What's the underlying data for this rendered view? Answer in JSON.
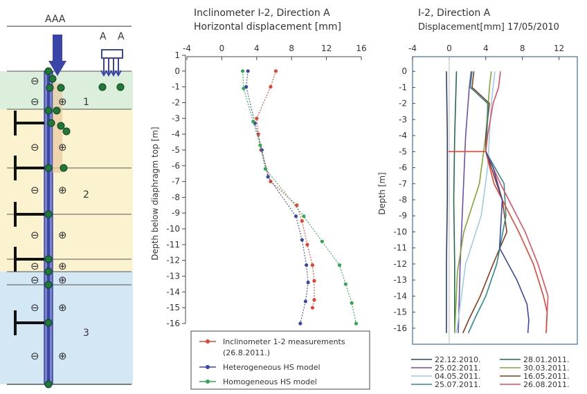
{
  "figure": {
    "schematic": {
      "top_label": "AAA",
      "arrow_label_1": "A",
      "arrow_label_2": "A",
      "layers": [
        {
          "label": "1",
          "color": "#dcefdc"
        },
        {
          "label": "2",
          "color": "#fbf2d0"
        },
        {
          "label": "3",
          "color": "#d4e7f5"
        }
      ],
      "minus_sign": "⊖",
      "plus_sign": "⊕",
      "wall_color": "#3a45a8",
      "anchor_color": "#111111",
      "node_color": "#1f7a3a"
    }
  },
  "chart_data": [
    {
      "type": "line",
      "title": "Inclinometer I-2, Direction A",
      "subtitle": "Horizontal displacement [mm]",
      "xlabel": "",
      "ylabel": "Depth below diaphragm top [m]",
      "xlim": [
        -4,
        16
      ],
      "ylim": [
        -16,
        1
      ],
      "xticks": [
        -4,
        0,
        4,
        8,
        12,
        16
      ],
      "yticks": [
        1,
        0,
        -1,
        -2,
        -3,
        -4,
        -5,
        -6,
        -7,
        -8,
        -9,
        -10,
        -11,
        -12,
        -13,
        -14,
        -15,
        -16
      ],
      "ytick_labels": [
        "1",
        "0",
        "-1",
        "-2",
        "-3",
        "-4",
        "-5",
        "-6",
        "-7",
        "-8",
        "-9",
        "-10",
        "-11",
        "-12",
        "-13",
        "-14",
        "-15",
        "-16"
      ],
      "legend_position": "bottom",
      "series": [
        {
          "name": "Inclinometer 1-2 measurements (26.8.2011.)",
          "color": "#e8432e",
          "points": [
            [
              6.2,
              0
            ],
            [
              5.6,
              -1
            ],
            [
              4.0,
              -3
            ],
            [
              4.2,
              -4
            ],
            [
              4.5,
              -5
            ],
            [
              5.6,
              -7
            ],
            [
              8.6,
              -8.5
            ],
            [
              9.2,
              -9.5
            ],
            [
              9.8,
              -11
            ],
            [
              10.4,
              -12.3
            ],
            [
              10.6,
              -13.3
            ],
            [
              10.6,
              -14.5
            ],
            [
              10.4,
              -15
            ]
          ]
        },
        {
          "name": "Heterogeneous HS model",
          "color": "#3b47a8",
          "points": [
            [
              3.0,
              0
            ],
            [
              2.8,
              -1
            ],
            [
              3.8,
              -3.3
            ],
            [
              4.6,
              -5
            ],
            [
              5.3,
              -6.7
            ],
            [
              8.5,
              -9.2
            ],
            [
              9.2,
              -10.7
            ],
            [
              9.7,
              -12.3
            ],
            [
              9.9,
              -13.4
            ],
            [
              9.6,
              -14.6
            ],
            [
              9.0,
              -16
            ]
          ]
        },
        {
          "name": "Homogeneous HS model",
          "color": "#2eaa52",
          "points": [
            [
              2.4,
              0
            ],
            [
              2.5,
              -1.1
            ],
            [
              3.6,
              -3.2
            ],
            [
              4.4,
              -4.7
            ],
            [
              5.0,
              -6.2
            ],
            [
              9.4,
              -9.2
            ],
            [
              11.5,
              -10.8
            ],
            [
              13.5,
              -12.3
            ],
            [
              14.2,
              -13.5
            ],
            [
              14.9,
              -14.7
            ],
            [
              15.4,
              -16
            ]
          ]
        }
      ]
    },
    {
      "type": "line",
      "title": "I-2, Direction A",
      "subtitle": "Displacement[mm] 17/05/2010",
      "xlabel": "",
      "ylabel": "Depth [m]",
      "xlim": [
        -4,
        14
      ],
      "ylim": [
        -17,
        1
      ],
      "xticks": [
        -4,
        0,
        4,
        8,
        12
      ],
      "yticks": [
        0,
        -1,
        -2,
        -3,
        -4,
        -5,
        -6,
        -7,
        -8,
        -9,
        -10,
        -11,
        -12,
        -13,
        -14,
        -15,
        -16
      ],
      "legend_position": "bottom",
      "series": [
        {
          "name": "22.12.2010.",
          "color": "#2c3e7a",
          "points": [
            [
              -0.3,
              0
            ],
            [
              -0.2,
              -4
            ],
            [
              -0.2,
              -8
            ],
            [
              -0.3,
              -12
            ],
            [
              -0.3,
              -16.3
            ]
          ]
        },
        {
          "name": "28.01.2011.",
          "color": "#1f6b4a",
          "points": [
            [
              0.8,
              0
            ],
            [
              0.6,
              -4
            ],
            [
              0.5,
              -8
            ],
            [
              0.6,
              -12
            ],
            [
              0.6,
              -16.3
            ]
          ]
        },
        {
          "name": "25.02.2011.",
          "color": "#6a4fb0",
          "points": [
            [
              2.4,
              0
            ],
            [
              2.2,
              -1
            ],
            [
              1.8,
              -4
            ],
            [
              1.5,
              -8
            ],
            [
              1.2,
              -12
            ],
            [
              1.0,
              -16.3
            ]
          ]
        },
        {
          "name": "30.03.2011.",
          "color": "#7fa832",
          "points": [
            [
              4.6,
              0
            ],
            [
              4.4,
              -1
            ],
            [
              4.0,
              -4
            ],
            [
              3.3,
              -7
            ],
            [
              1.6,
              -10
            ],
            [
              0.9,
              -12.5
            ],
            [
              0.6,
              -16.3
            ]
          ]
        },
        {
          "name": "04.05.2011.",
          "color": "#9ecbe8",
          "points": [
            [
              5.0,
              0
            ],
            [
              4.8,
              -1
            ],
            [
              4.6,
              -2
            ],
            [
              4.4,
              -4
            ],
            [
              4.2,
              -6
            ],
            [
              3.5,
              -9
            ],
            [
              1.8,
              -12
            ],
            [
              0.8,
              -16.3
            ]
          ]
        },
        {
          "name": "16.05.2011.",
          "color": "#8b3a1a",
          "points": [
            [
              2.7,
              0
            ],
            [
              2.5,
              -1
            ],
            [
              2.9,
              -1.2
            ],
            [
              4.4,
              -2
            ],
            [
              4.0,
              -4
            ],
            [
              4.0,
              -5
            ],
            [
              5.8,
              -8
            ],
            [
              6.3,
              -10
            ],
            [
              4.8,
              -12
            ],
            [
              3.4,
              -14
            ],
            [
              2.2,
              -15.4
            ],
            [
              1.5,
              -16.3
            ]
          ]
        },
        {
          "name": "25.07.2011.",
          "color": "#2a8a8a",
          "points": [
            [
              2.5,
              0
            ],
            [
              2.3,
              -1
            ],
            [
              2.7,
              -1.2
            ],
            [
              4.2,
              -2
            ],
            [
              4.2,
              -3
            ],
            [
              4.0,
              -5
            ],
            [
              6.0,
              -7
            ],
            [
              6.2,
              -9
            ],
            [
              5.2,
              -12
            ],
            [
              4.0,
              -14
            ],
            [
              2.8,
              -15.4
            ],
            [
              2.1,
              -16.3
            ]
          ]
        },
        {
          "name": "26.08.2011.",
          "color": "#e84a5f",
          "points": [
            [
              5.6,
              0
            ],
            [
              5.4,
              -1
            ],
            [
              4.8,
              -2
            ],
            [
              4.2,
              -4
            ],
            [
              4.0,
              -5
            ],
            [
              5.6,
              -7
            ],
            [
              8.3,
              -10
            ],
            [
              9.7,
              -12
            ],
            [
              10.8,
              -14
            ],
            [
              10.7,
              -15
            ],
            [
              10.6,
              -16.3
            ]
          ]
        },
        {
          "name": "",
          "color": "#e8432e",
          "points": [
            [
              -0.1,
              -5
            ],
            [
              4.0,
              -5
            ],
            [
              4.9,
              -7
            ],
            [
              7.6,
              -10
            ],
            [
              9.2,
              -12
            ],
            [
              10.3,
              -14
            ],
            [
              10.7,
              -15
            ],
            [
              10.6,
              -16.3
            ]
          ]
        },
        {
          "name": "",
          "color": "#3b47a8",
          "points": [
            [
              4.0,
              -5
            ],
            [
              4.8,
              -6
            ],
            [
              5.8,
              -8
            ],
            [
              5.5,
              -11
            ],
            [
              7.4,
              -13
            ],
            [
              8.5,
              -14.5
            ],
            [
              8.7,
              -15.5
            ],
            [
              8.6,
              -16.3
            ]
          ]
        }
      ]
    }
  ]
}
